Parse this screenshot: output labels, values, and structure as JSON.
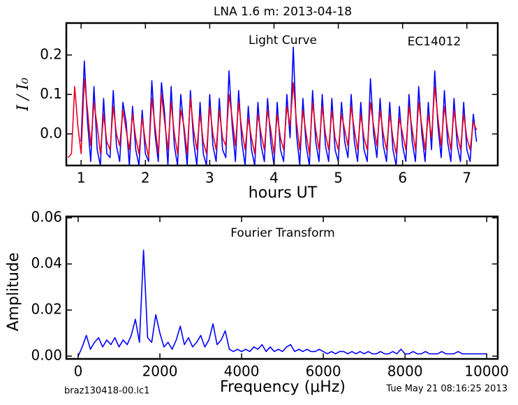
{
  "chart_data": [
    {
      "type": "line",
      "title": "LNA 1.6 m:  2013-04-18",
      "xlabel": "hours UT",
      "ylabel": "I / I₀",
      "annotations": [
        "Light Curve",
        "EC14012"
      ],
      "xlim": [
        0.77,
        7.48
      ],
      "xticks": [
        1,
        2,
        3,
        4,
        5,
        6,
        7
      ],
      "ylim": [
        -0.08,
        0.281
      ],
      "yticks": [
        {
          "value": 0,
          "label": "0.0"
        },
        0.1,
        0.2
      ],
      "x": [
        0.8,
        0.85,
        0.9,
        0.95,
        1.0,
        1.05,
        1.1,
        1.15,
        1.2,
        1.25,
        1.3,
        1.35,
        1.4,
        1.45,
        1.5,
        1.55,
        1.6,
        1.65,
        1.7,
        1.75,
        1.8,
        1.85,
        1.9,
        1.95,
        2.0,
        2.05,
        2.1,
        2.15,
        2.2,
        2.25,
        2.3,
        2.35,
        2.4,
        2.45,
        2.5,
        2.55,
        2.6,
        2.65,
        2.7,
        2.75,
        2.8,
        2.85,
        2.9,
        2.95,
        3.0,
        3.05,
        3.1,
        3.15,
        3.2,
        3.25,
        3.3,
        3.35,
        3.4,
        3.45,
        3.5,
        3.55,
        3.6,
        3.65,
        3.7,
        3.75,
        3.8,
        3.85,
        3.9,
        3.95,
        4.0,
        4.05,
        4.1,
        4.15,
        4.2,
        4.25,
        4.3,
        4.35,
        4.4,
        4.45,
        4.5,
        4.55,
        4.6,
        4.65,
        4.7,
        4.75,
        4.8,
        4.85,
        4.9,
        4.95,
        5.0,
        5.05,
        5.1,
        5.15,
        5.2,
        5.25,
        5.3,
        5.35,
        5.4,
        5.45,
        5.5,
        5.55,
        5.6,
        5.65,
        5.7,
        5.75,
        5.8,
        5.85,
        5.9,
        5.95,
        6.0,
        6.05,
        6.1,
        6.15,
        6.2,
        6.25,
        6.3,
        6.35,
        6.4,
        6.45,
        6.5,
        6.55,
        6.6,
        6.65,
        6.7,
        6.75,
        6.8,
        6.85,
        6.9,
        6.95,
        7.0,
        7.05,
        7.1,
        7.15
      ],
      "series": [
        {
          "color": "#0000ff",
          "values": [
            null,
            null,
            null,
            null,
            -0.02,
            0.185,
            0.03,
            -0.07,
            0.12,
            -0.04,
            -0.08,
            0.09,
            -0.05,
            -0.06,
            0.11,
            -0.03,
            -0.07,
            0.08,
            0.03,
            -0.08,
            0.07,
            -0.04,
            -0.08,
            0.06,
            -0.05,
            -0.07,
            0.135,
            0.0,
            -0.07,
            0.13,
            0.05,
            -0.08,
            0.12,
            -0.03,
            -0.08,
            0.1,
            0.01,
            -0.08,
            0.11,
            -0.02,
            -0.08,
            0.08,
            -0.05,
            -0.08,
            0.1,
            -0.03,
            -0.07,
            0.09,
            -0.04,
            -0.06,
            0.16,
            0.02,
            -0.07,
            0.11,
            -0.02,
            -0.08,
            0.07,
            -0.04,
            -0.08,
            0.08,
            -0.03,
            -0.07,
            0.09,
            -0.02,
            -0.08,
            0.08,
            -0.04,
            -0.07,
            0.1,
            -0.01,
            0.22,
            0.0,
            -0.08,
            0.09,
            -0.03,
            -0.08,
            0.11,
            -0.02,
            -0.07,
            0.1,
            -0.03,
            -0.07,
            0.09,
            -0.04,
            -0.07,
            0.08,
            -0.02,
            -0.06,
            0.1,
            -0.02,
            -0.07,
            0.08,
            -0.04,
            -0.07,
            0.14,
            0.0,
            -0.06,
            0.09,
            -0.03,
            -0.07,
            0.08,
            -0.04,
            -0.08,
            0.07,
            -0.03,
            -0.07,
            0.1,
            -0.02,
            -0.07,
            0.12,
            0.0,
            -0.07,
            0.08,
            -0.04,
            0.16,
            0.02,
            -0.06,
            0.11,
            -0.02,
            -0.07,
            0.09,
            -0.03,
            -0.07,
            0.08,
            -0.04,
            -0.07,
            0.05,
            -0.02
          ]
        },
        {
          "color": "#e8001c",
          "values": [
            -0.06,
            -0.05,
            0.12,
            0.02,
            -0.05,
            0.14,
            0.06,
            -0.03,
            0.08,
            0.02,
            -0.05,
            0.05,
            -0.02,
            -0.04,
            0.07,
            0.0,
            -0.03,
            0.06,
            0.01,
            -0.04,
            0.05,
            -0.01,
            -0.05,
            0.04,
            -0.02,
            -0.06,
            0.09,
            0.02,
            -0.05,
            0.1,
            0.03,
            -0.04,
            0.08,
            0.0,
            -0.05,
            0.06,
            0.02,
            -0.05,
            0.09,
            0.01,
            -0.04,
            0.05,
            -0.02,
            -0.05,
            0.07,
            0.0,
            -0.04,
            0.06,
            -0.01,
            -0.03,
            0.1,
            0.04,
            -0.03,
            0.08,
            0.01,
            -0.04,
            0.04,
            -0.01,
            -0.05,
            0.05,
            0.0,
            -0.04,
            0.06,
            0.01,
            -0.05,
            0.05,
            -0.01,
            -0.04,
            0.07,
            0.02,
            0.13,
            0.03,
            -0.04,
            0.06,
            0.0,
            -0.05,
            0.08,
            0.01,
            -0.04,
            0.07,
            0.0,
            -0.04,
            0.06,
            -0.01,
            -0.04,
            0.05,
            0.01,
            -0.03,
            0.07,
            0.01,
            -0.04,
            0.05,
            -0.01,
            -0.04,
            0.08,
            0.02,
            -0.03,
            0.06,
            0.0,
            -0.04,
            0.05,
            -0.01,
            -0.05,
            0.04,
            0.0,
            -0.04,
            0.07,
            0.01,
            -0.04,
            0.08,
            0.02,
            -0.04,
            0.05,
            -0.01,
            0.12,
            0.04,
            -0.03,
            0.07,
            0.01,
            -0.04,
            0.06,
            0.0,
            -0.04,
            0.05,
            -0.01,
            -0.04,
            0.03,
            0.01
          ]
        }
      ]
    },
    {
      "type": "line",
      "xlabel": "Frequency (μHz)",
      "ylabel": "Amplitude",
      "annotations": [
        "Fourier Transform"
      ],
      "xlim": [
        -290,
        10270
      ],
      "xticks": [
        0,
        2000,
        4000,
        6000,
        8000,
        10000
      ],
      "ylim": [
        -0.0012,
        0.0606
      ],
      "yticks": [
        {
          "value": 0,
          "label": "0.00"
        },
        {
          "value": 0.02,
          "label": "0.02"
        },
        {
          "value": 0.04,
          "label": "0.04"
        },
        {
          "value": 0.06,
          "label": "0.06"
        }
      ],
      "x": [
        0,
        100,
        200,
        300,
        400,
        500,
        600,
        700,
        800,
        900,
        1000,
        1100,
        1200,
        1300,
        1400,
        1500,
        1600,
        1700,
        1800,
        1900,
        2000,
        2100,
        2200,
        2300,
        2400,
        2500,
        2600,
        2700,
        2800,
        2900,
        3000,
        3100,
        3200,
        3300,
        3400,
        3500,
        3600,
        3700,
        3800,
        3900,
        4000,
        4100,
        4200,
        4300,
        4400,
        4500,
        4600,
        4700,
        4800,
        4900,
        5000,
        5100,
        5200,
        5300,
        5400,
        5500,
        5600,
        5700,
        5800,
        5900,
        6000,
        6100,
        6200,
        6300,
        6400,
        6500,
        6600,
        6700,
        6800,
        6900,
        7000,
        7100,
        7200,
        7300,
        7400,
        7500,
        7600,
        7700,
        7800,
        7900,
        8000,
        8100,
        8200,
        8300,
        8400,
        8500,
        8600,
        8700,
        8800,
        8900,
        9000,
        9100,
        9200,
        9300,
        9400,
        9500,
        9600,
        9700,
        9800,
        9900,
        10000
      ],
      "series": [
        {
          "color": "#0000ff",
          "values": [
            0.0,
            0.004,
            0.009,
            0.003,
            0.006,
            0.008,
            0.004,
            0.007,
            0.005,
            0.008,
            0.004,
            0.007,
            0.005,
            0.009,
            0.016,
            0.006,
            0.046,
            0.008,
            0.006,
            0.018,
            0.01,
            0.004,
            0.006,
            0.003,
            0.007,
            0.013,
            0.005,
            0.008,
            0.004,
            0.006,
            0.009,
            0.004,
            0.007,
            0.014,
            0.005,
            0.007,
            0.011,
            0.003,
            0.002,
            0.003,
            0.002,
            0.003,
            0.002,
            0.004,
            0.003,
            0.005,
            0.002,
            0.004,
            0.002,
            0.003,
            0.002,
            0.004,
            0.005,
            0.002,
            0.003,
            0.002,
            0.003,
            0.002,
            0.002,
            0.003,
            0.002,
            0.001,
            0.002,
            0.001,
            0.002,
            0.002,
            0.001,
            0.002,
            0.001,
            0.002,
            0.001,
            0.002,
            0.001,
            0.001,
            0.002,
            0.001,
            0.001,
            0.002,
            0.001,
            0.003,
            0.001,
            0.001,
            0.002,
            0.001,
            0.001,
            0.002,
            0.001,
            0.001,
            0.001,
            0.002,
            0.001,
            0.001,
            0.001,
            0.002,
            0.001,
            0.001,
            0.001,
            0.001,
            0.001,
            0.001,
            0.001
          ]
        }
      ]
    }
  ],
  "footer": {
    "left": "braz130418-00.lc1",
    "right": "Tue May 21 08:16:25 2013"
  }
}
